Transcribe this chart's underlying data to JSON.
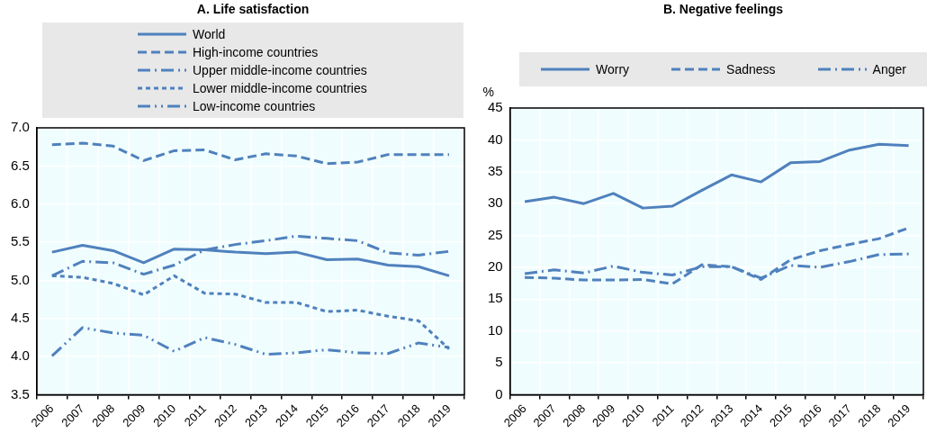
{
  "chart_data": [
    {
      "type": "line",
      "title": "A. Life satisfaction",
      "categories": [
        "2006",
        "2007",
        "2008",
        "2009",
        "2010",
        "2011",
        "2012",
        "2013",
        "2014",
        "2015",
        "2016",
        "2017",
        "2018",
        "2019"
      ],
      "series": [
        {
          "name": "World",
          "color": "#4f81bd",
          "line_style": "solid",
          "values": [
            5.37,
            5.46,
            5.39,
            5.23,
            5.41,
            5.4,
            5.37,
            5.35,
            5.37,
            5.27,
            5.28,
            5.2,
            5.18,
            5.06
          ]
        },
        {
          "name": "High-income countries",
          "color": "#4f81bd",
          "line_style": "dashed",
          "values": [
            6.78,
            6.8,
            6.76,
            6.57,
            6.7,
            6.71,
            6.58,
            6.66,
            6.63,
            6.53,
            6.55,
            6.65,
            6.65,
            6.65
          ]
        },
        {
          "name": "Upper middle-income countries",
          "color": "#4f81bd",
          "line_style": "dashdot",
          "values": [
            5.06,
            5.25,
            5.23,
            5.08,
            5.2,
            5.4,
            5.47,
            5.52,
            5.58,
            5.55,
            5.52,
            5.36,
            5.33,
            5.38
          ]
        },
        {
          "name": "Lower middle-income countries",
          "color": "#4f81bd",
          "line_style": "dotted",
          "values": [
            5.06,
            5.04,
            4.96,
            4.81,
            5.06,
            4.83,
            4.82,
            4.71,
            4.71,
            4.59,
            4.61,
            4.53,
            4.47,
            4.1
          ]
        },
        {
          "name": "Low-income countries",
          "color": "#4f81bd",
          "line_style": "dashdotdot",
          "values": [
            4.01,
            4.38,
            4.31,
            4.28,
            4.07,
            4.25,
            4.16,
            4.03,
            4.05,
            4.09,
            4.05,
            4.04,
            4.18,
            4.12
          ]
        }
      ],
      "ylim": [
        3.5,
        7.0
      ],
      "yticks": [
        3.5,
        {
          "value": 4,
          "label": "4.0"
        },
        4.5,
        {
          "value": 5,
          "label": "5.0"
        },
        5.5,
        {
          "value": 6,
          "label": "6.0"
        },
        6.5,
        {
          "value": 7,
          "label": "7.0"
        }
      ],
      "grid": true,
      "legend": "top",
      "marker": "none"
    },
    {
      "type": "line",
      "title": "B. Negative feelings",
      "ylabel": "%",
      "categories": [
        "2006",
        "2007",
        "2008",
        "2009",
        "2010",
        "2011",
        "2012",
        "2013",
        "2014",
        "2015",
        "2016",
        "2017",
        "2018",
        "2019"
      ],
      "series": [
        {
          "name": "Worry",
          "color": "#4f81bd",
          "line_style": "solid",
          "values": [
            30.3,
            31.0,
            30.0,
            31.6,
            29.3,
            29.6,
            32.1,
            34.5,
            33.4,
            36.4,
            36.6,
            38.4,
            39.3,
            39.1
          ]
        },
        {
          "name": "Sadness",
          "color": "#4f81bd",
          "line_style": "dashed",
          "values": [
            18.4,
            18.3,
            18.0,
            18.0,
            18.1,
            17.4,
            20.4,
            20.1,
            18.1,
            21.2,
            22.6,
            23.6,
            24.5,
            26.2
          ]
        },
        {
          "name": "Anger",
          "color": "#4f81bd",
          "line_style": "dashdot",
          "values": [
            19.0,
            19.6,
            19.1,
            20.2,
            19.2,
            18.8,
            20.1,
            20.1,
            18.3,
            20.3,
            20.0,
            20.9,
            22.0,
            22.1
          ]
        }
      ],
      "ylim": [
        0,
        45
      ],
      "yticks": [
        0,
        5,
        10,
        15,
        20,
        25,
        30,
        35,
        40,
        45
      ],
      "grid": true,
      "legend": "top",
      "marker": "none"
    }
  ]
}
